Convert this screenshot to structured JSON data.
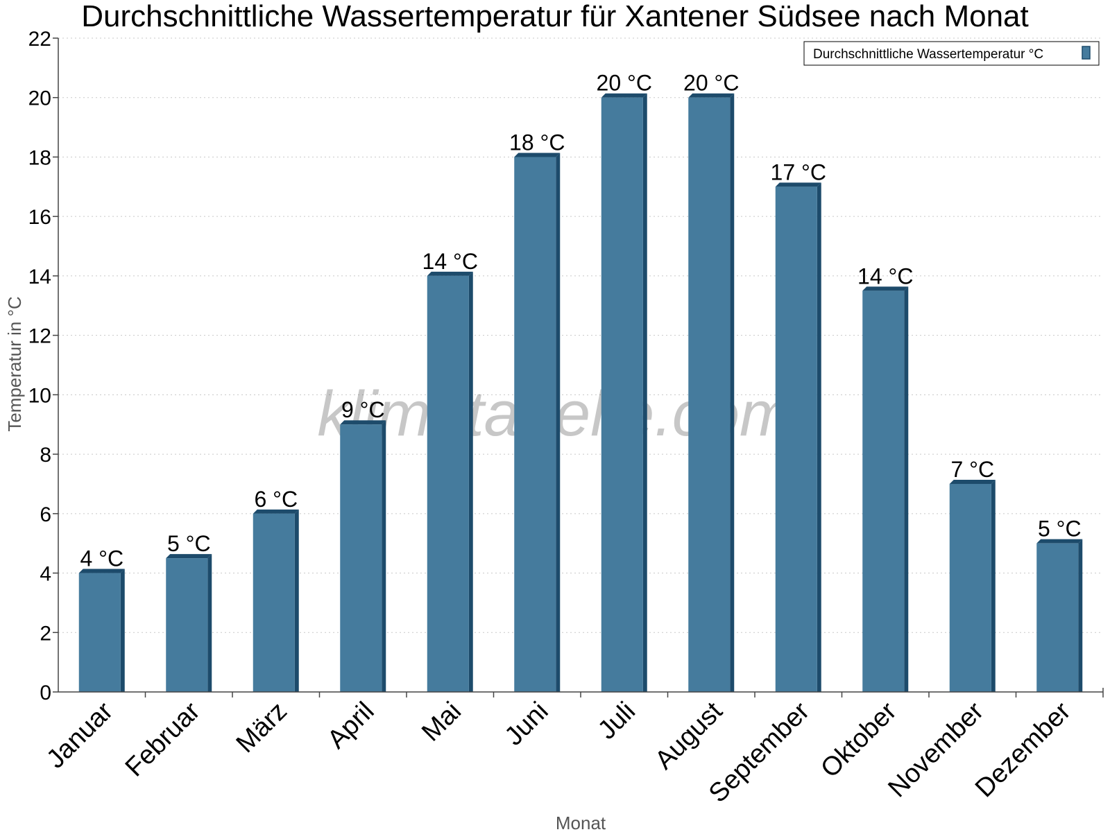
{
  "chart_data": {
    "type": "bar",
    "title": "Durchschnittliche Wassertemperatur für Xantener Südsee nach Monat",
    "xlabel": "Monat",
    "ylabel": "Temperatur in °C",
    "ylim": [
      0,
      22
    ],
    "yticks": [
      0,
      2,
      4,
      6,
      8,
      10,
      12,
      14,
      16,
      18,
      20,
      22
    ],
    "grid": true,
    "legend_position": "top-right",
    "categories": [
      "Januar",
      "Februar",
      "März",
      "April",
      "Mai",
      "Juni",
      "Juli",
      "August",
      "September",
      "Oktober",
      "November",
      "Dezember"
    ],
    "series": [
      {
        "name": "Durchschnittliche Wassertemperatur °C",
        "color": "#457b9d",
        "values": [
          4,
          4.5,
          6,
          9,
          14,
          18,
          20,
          20,
          17,
          13.5,
          7,
          5
        ],
        "labels": [
          "4 °C",
          "5 °C",
          "6 °C",
          "9 °C",
          "14 °C",
          "18 °C",
          "20 °C",
          "20 °C",
          "17 °C",
          "14 °C",
          "7 °C",
          "5 °C"
        ]
      }
    ]
  },
  "watermark": "klimatabelle.com",
  "colors": {
    "bar": "#457b9d",
    "bar_side": "#1d4b6b",
    "grid": "#c8c8c8",
    "axis": "#444444"
  }
}
